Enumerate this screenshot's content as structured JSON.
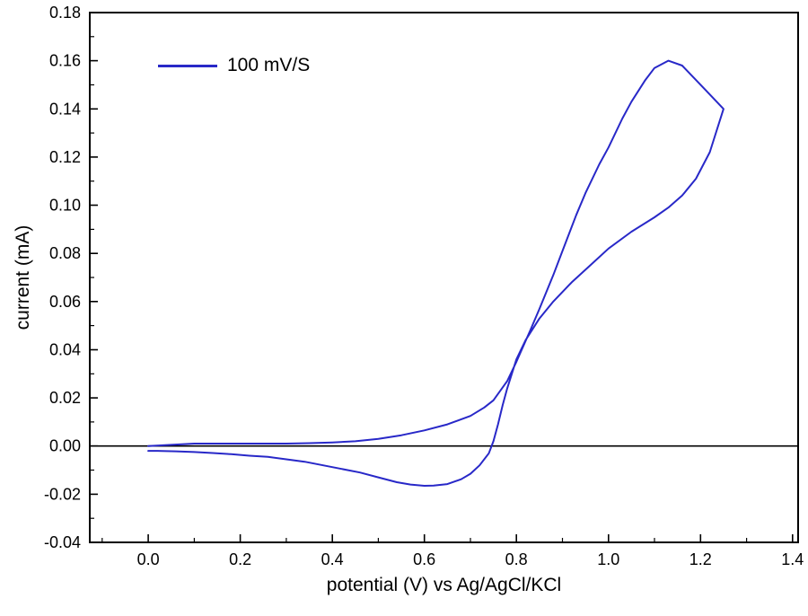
{
  "figure": {
    "background": "#ffffff"
  },
  "chart_data": {
    "type": "line",
    "chart_kind": "cyclic-voltammogram",
    "title": "",
    "xlabel": "potential (V) vs Ag/AgCl/KCl",
    "ylabel": "current (mA)",
    "xlim": [
      -0.127,
      1.412
    ],
    "ylim": [
      -0.04,
      0.18
    ],
    "x_tick_values": [
      0.0,
      0.2,
      0.4,
      0.6,
      0.8,
      1.0,
      1.2,
      1.4
    ],
    "x_tick_labels": [
      "0.0",
      "0.2",
      "0.4",
      "0.6",
      "0.8",
      "1.0",
      "1.2",
      "1.4"
    ],
    "y_tick_values": [
      -0.04,
      -0.02,
      0.0,
      0.02,
      0.04,
      0.06,
      0.08,
      0.1,
      0.12,
      0.14,
      0.16,
      0.18
    ],
    "y_tick_labels": [
      "-0.04",
      "-0.02",
      "0.00",
      "0.02",
      "0.04",
      "0.06",
      "0.08",
      "0.10",
      "0.12",
      "0.14",
      "0.16",
      "0.18"
    ],
    "grid": false,
    "zero_line": true,
    "axis_color": "#000000",
    "legend": {
      "label": "100 mV/S",
      "position": "top-left"
    },
    "series": [
      {
        "name": "100 mV/S",
        "color": "#2828c8",
        "scan_description": "forward anodic sweep 0.0 to 1.25 V then reverse sweep back to 0.0 V; anodic peak ~0.160 mA at ~1.13 V, cathodic dip ~-0.0165 mA at ~0.60 V",
        "x": [
          0.0,
          0.05,
          0.1,
          0.15,
          0.2,
          0.25,
          0.3,
          0.35,
          0.4,
          0.45,
          0.5,
          0.55,
          0.6,
          0.65,
          0.7,
          0.73,
          0.75,
          0.78,
          0.8,
          0.83,
          0.85,
          0.88,
          0.9,
          0.93,
          0.95,
          0.98,
          1.0,
          1.03,
          1.05,
          1.08,
          1.1,
          1.13,
          1.16,
          1.19,
          1.22,
          1.25,
          1.22,
          1.19,
          1.16,
          1.13,
          1.1,
          1.05,
          1.0,
          0.96,
          0.92,
          0.88,
          0.85,
          0.82,
          0.8,
          0.78,
          0.77,
          0.76,
          0.75,
          0.74,
          0.72,
          0.7,
          0.68,
          0.65,
          0.62,
          0.6,
          0.57,
          0.54,
          0.5,
          0.46,
          0.42,
          0.38,
          0.34,
          0.3,
          0.26,
          0.22,
          0.18,
          0.14,
          0.1,
          0.06,
          0.02,
          0.0
        ],
        "y": [
          0.0,
          0.0005,
          0.001,
          0.001,
          0.001,
          0.001,
          0.001,
          0.0012,
          0.0015,
          0.002,
          0.003,
          0.0045,
          0.0065,
          0.009,
          0.0125,
          0.016,
          0.019,
          0.027,
          0.035,
          0.048,
          0.057,
          0.071,
          0.081,
          0.096,
          0.105,
          0.117,
          0.124,
          0.136,
          0.143,
          0.152,
          0.157,
          0.16,
          0.158,
          0.152,
          0.146,
          0.14,
          0.122,
          0.111,
          0.104,
          0.099,
          0.095,
          0.089,
          0.082,
          0.075,
          0.068,
          0.06,
          0.053,
          0.044,
          0.036,
          0.024,
          0.017,
          0.009,
          0.002,
          -0.003,
          -0.008,
          -0.0115,
          -0.0138,
          -0.0158,
          -0.0164,
          -0.0165,
          -0.016,
          -0.015,
          -0.013,
          -0.011,
          -0.0095,
          -0.008,
          -0.0065,
          -0.0055,
          -0.0045,
          -0.004,
          -0.0034,
          -0.0029,
          -0.0025,
          -0.0022,
          -0.002,
          -0.002
        ]
      }
    ]
  }
}
